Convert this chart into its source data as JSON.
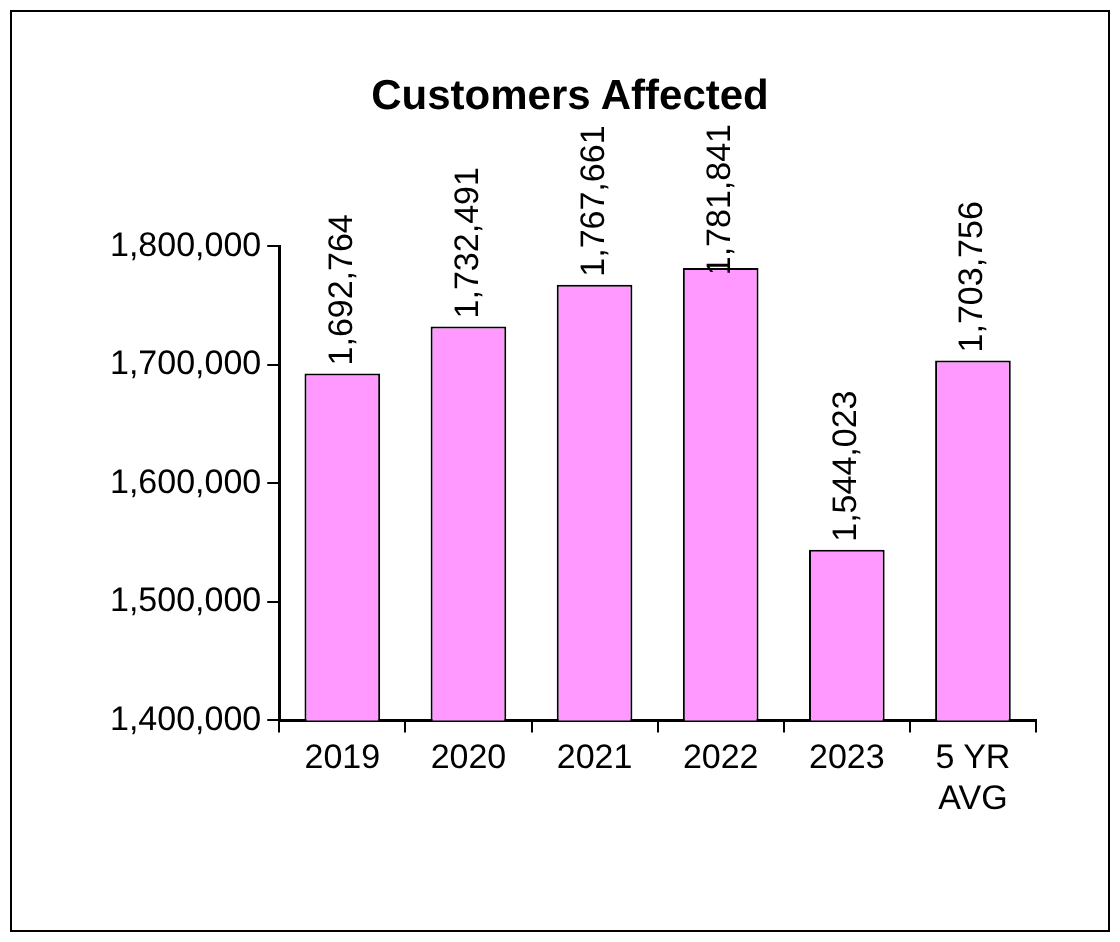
{
  "chart_data": {
    "type": "bar",
    "title": "Customers Affected",
    "categories": [
      "2019",
      "2020",
      "2021",
      "2022",
      "2023",
      "5 YR AVG"
    ],
    "values": [
      1692764,
      1732491,
      1767661,
      1781841,
      1544023,
      1703756
    ],
    "value_labels": [
      "1,692,764",
      "1,732,491",
      "1,767,661",
      "1,781,841",
      "1,544,023",
      "1,703,756"
    ],
    "color": "#ff99ff",
    "ylim": [
      1400000,
      1800000
    ],
    "yticks": [
      {
        "value": 1400000,
        "label": "1,400,000"
      },
      {
        "value": 1500000,
        "label": "1,500,000"
      },
      {
        "value": 1600000,
        "label": "1,600,000"
      },
      {
        "value": 1700000,
        "label": "1,700,000"
      },
      {
        "value": 1800000,
        "label": "1,800,000"
      }
    ],
    "grid": false,
    "legend": false
  }
}
